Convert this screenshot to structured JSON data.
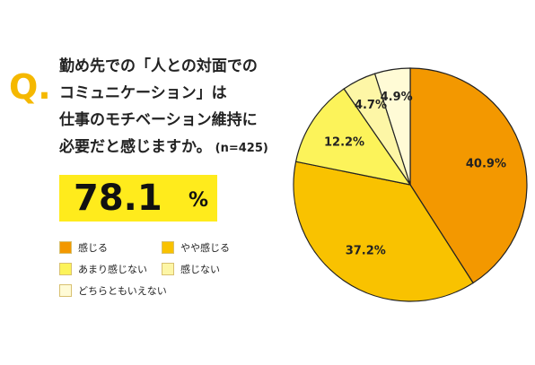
{
  "question": {
    "mark": "Q.",
    "lines": [
      "勤め先での「人との対面での",
      "コミュニケーション」は",
      "仕事のモチベーション維持に",
      "必要だと感じますか。"
    ],
    "sample": "(n=425)"
  },
  "highlight": {
    "value": "78.1",
    "unit": "%"
  },
  "chart_data": {
    "type": "pie",
    "categories": [
      "感じる",
      "やや感じる",
      "あまり感じない",
      "感じない",
      "どちらともいえない"
    ],
    "values": [
      40.9,
      37.2,
      12.2,
      4.7,
      4.9
    ],
    "labels": [
      "40.9%",
      "37.2%",
      "12.2%",
      "4.7%",
      "4.9%"
    ],
    "colors": [
      "#f39800",
      "#f9c200",
      "#fcf35a",
      "#fdf6a6",
      "#fffbd6"
    ],
    "start": "12 o'clock",
    "direction": "clockwise",
    "legend_position": "bottom-left"
  }
}
